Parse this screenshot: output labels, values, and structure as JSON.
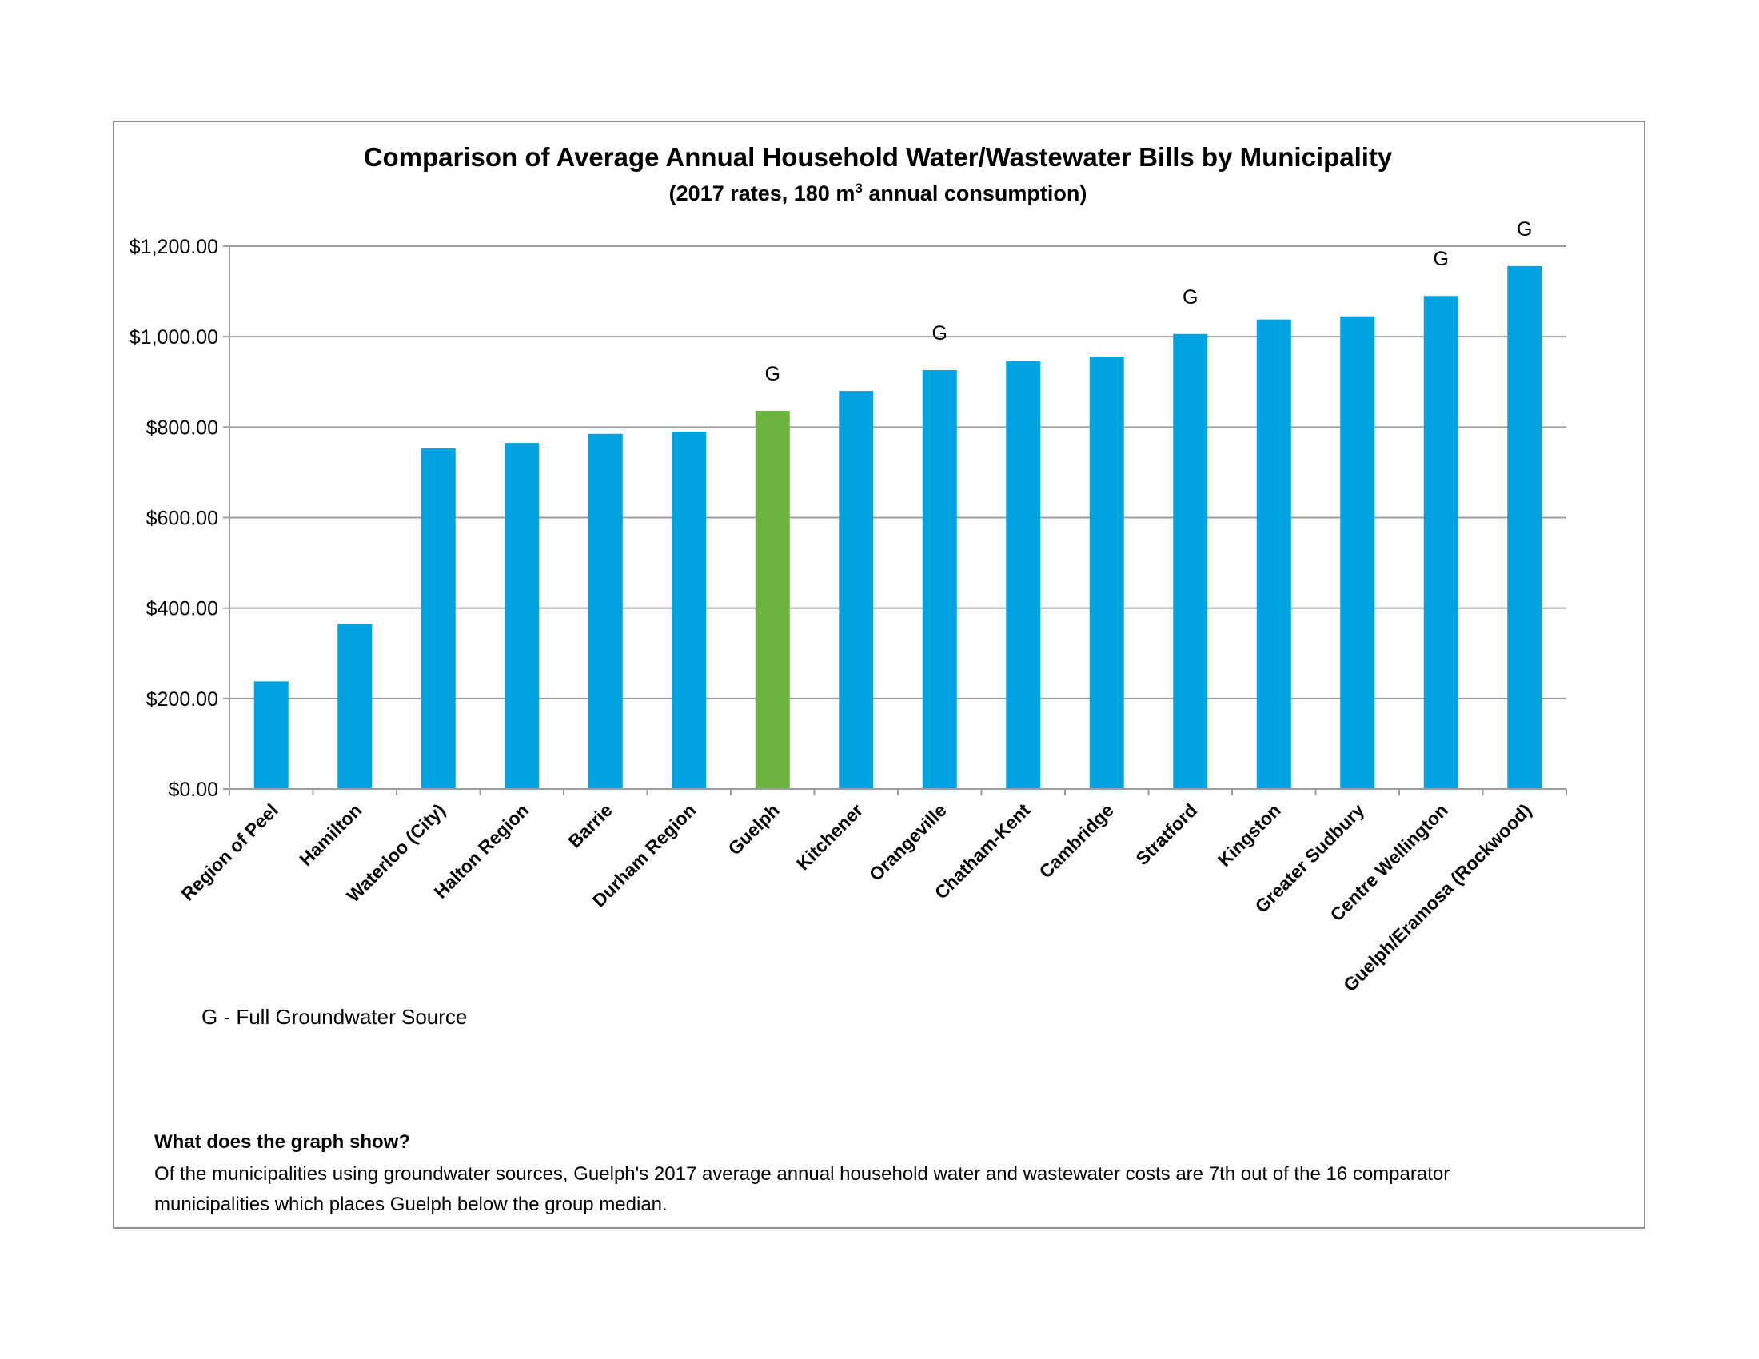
{
  "chart_data": {
    "type": "bar",
    "title": "Comparison of Average Annual Household Water/Wastewater Bills by Municipality",
    "subtitle_prefix": "(2017 rates, 180 m",
    "subtitle_sup": "3",
    "subtitle_suffix": " annual consumption)",
    "categories": [
      "Region of Peel",
      "Hamilton",
      "Waterloo (City)",
      "Halton Region",
      "Barrie",
      "Durham Region",
      "Guelph",
      "Kitchener",
      "Orangeville",
      "Chatham-Kent",
      "Cambridge",
      "Stratford",
      "Kingston",
      "Greater Sudbury",
      "Centre Wellington",
      "Guelph/Eramosa (Rockwood)"
    ],
    "values": [
      238,
      365,
      753,
      765,
      785,
      790,
      836,
      880,
      926,
      946,
      956,
      1006,
      1038,
      1045,
      1090,
      1156
    ],
    "markers": [
      "",
      "",
      "",
      "",
      "",
      "",
      "G",
      "",
      "G",
      "",
      "",
      "G",
      "",
      "",
      "G",
      "G"
    ],
    "highlight_index": 6,
    "y_ticks": [
      "$0.00",
      "$200.00",
      "$400.00",
      "$600.00",
      "$800.00",
      "$1,000.00",
      "$1,200.00"
    ],
    "ylim": [
      0,
      1200
    ],
    "xlabel": "",
    "ylabel": "",
    "grid": true,
    "colors": {
      "bar": "#00A3E0",
      "highlight": "#6DB33F",
      "grid": "#9d9d9d",
      "frame": "#8c8c8c"
    }
  },
  "legend_note": "G - Full Groundwater Source",
  "explanation": {
    "heading": "What does the graph show?",
    "body": "Of the municipalities using groundwater sources, Guelph's 2017 average annual household water and wastewater costs are 7th out of the 16 comparator municipalities which places Guelph below the group median."
  }
}
